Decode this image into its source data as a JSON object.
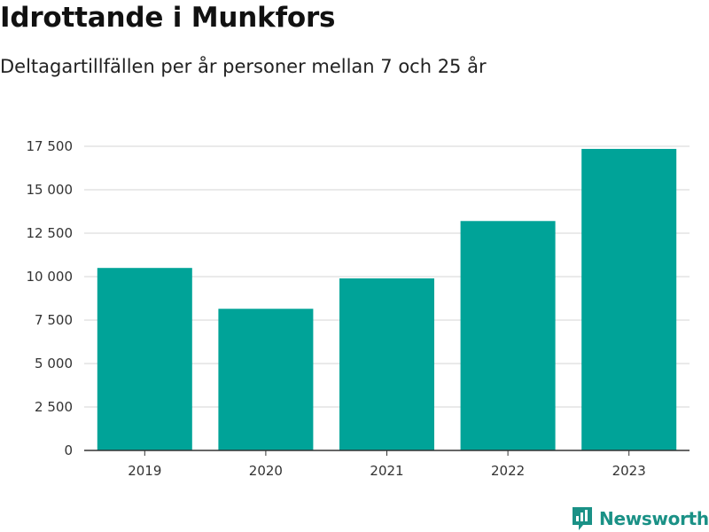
{
  "title": "Idrottande i Munkfors",
  "subtitle": "Deltagartillfällen per år personer mellan 7 och 25 år",
  "brand": "Newsworthy",
  "colors": {
    "bar": "#00a398",
    "grid": "#dddddd",
    "axis": "#333333",
    "brand": "#1a9186"
  },
  "chart_data": {
    "type": "bar",
    "title": "Idrottande i Munkfors",
    "subtitle": "Deltagartillfällen per år personer mellan 7 och 25 år",
    "xlabel": "",
    "ylabel": "",
    "categories": [
      "2019",
      "2020",
      "2021",
      "2022",
      "2023"
    ],
    "values": [
      10500,
      8150,
      9900,
      13200,
      17350
    ],
    "ylim": [
      0,
      17500
    ],
    "yticks": [
      0,
      2500,
      5000,
      7500,
      10000,
      12500,
      15000,
      17500
    ],
    "ytick_labels": [
      "0",
      "2 500",
      "5 000",
      "7 500",
      "10 000",
      "12 500",
      "15 000",
      "17 500"
    ],
    "grid": true,
    "legend": "none"
  }
}
